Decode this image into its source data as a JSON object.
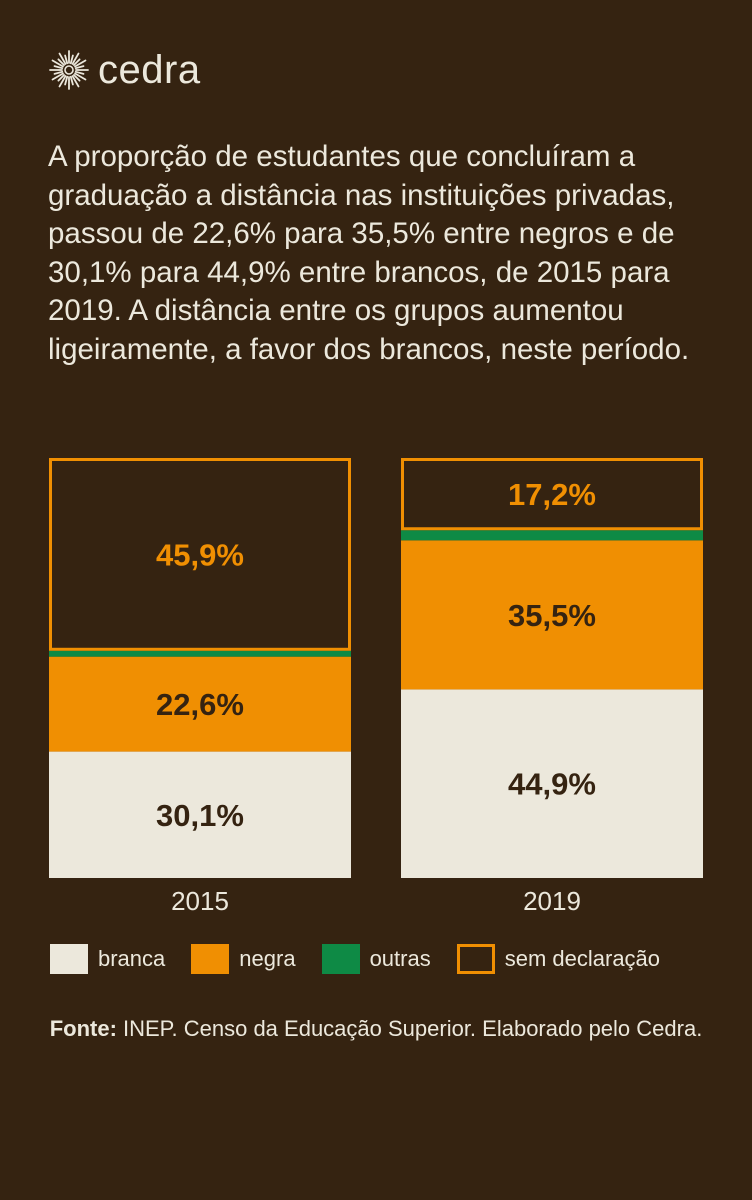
{
  "brand": {
    "name": "cedra"
  },
  "description": "A proporção de estudantes que concluíram a graduação a distância nas instituições privadas, passou de 22,6% para 35,5% entre negros e de 30,1% para 44,9% entre brancos, de 2015 para 2019. A distância entre os grupos aumentou ligeiramente, a favor dos brancos, neste período.",
  "colors": {
    "background": "#352311",
    "branca": "#ece8dc",
    "negra": "#f08f02",
    "outras": "#0e8a45",
    "sem_declaracao_outline": "#f08f02",
    "text_light": "#ece8dc",
    "text_dark": "#352311"
  },
  "chart_data": {
    "type": "bar",
    "stacked": true,
    "categories": [
      "2015",
      "2019"
    ],
    "series": [
      {
        "name": "branca",
        "values": [
          30.1,
          44.9
        ],
        "labels": [
          "30,1%",
          "44,9%"
        ],
        "color": "#ece8dc"
      },
      {
        "name": "negra",
        "values": [
          22.6,
          35.5
        ],
        "labels": [
          "22,6%",
          "35,5%"
        ],
        "color": "#f08f02"
      },
      {
        "name": "outras",
        "values": [
          1.4,
          2.4
        ],
        "labels": [
          "",
          ""
        ],
        "color": "#0e8a45"
      },
      {
        "name": "sem declaração",
        "values": [
          45.9,
          17.2
        ],
        "labels": [
          "45,9%",
          "17,2%"
        ],
        "color": "outline"
      }
    ],
    "ylim": [
      0,
      100
    ]
  },
  "legend": {
    "items": [
      {
        "label": "branca",
        "style": "fill",
        "color": "#ece8dc"
      },
      {
        "label": "negra",
        "style": "fill",
        "color": "#f08f02"
      },
      {
        "label": "outras",
        "style": "fill",
        "color": "#0e8a45"
      },
      {
        "label": "sem declaração",
        "style": "outline",
        "color": "#f08f02"
      }
    ]
  },
  "source": {
    "prefix": "Fonte:",
    "text": " INEP. Censo da Educação Superior. Elaborado pelo Cedra."
  }
}
